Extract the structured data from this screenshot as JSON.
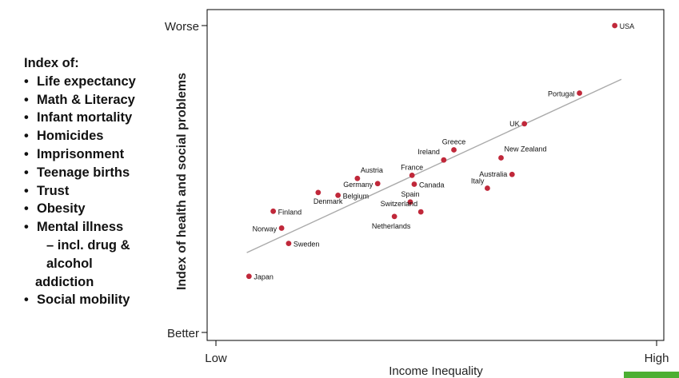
{
  "index_panel": {
    "title": "Index of:",
    "items": [
      {
        "text": "Life expectancy",
        "kind": "bullet"
      },
      {
        "text": "Math & Literacy",
        "kind": "bullet"
      },
      {
        "text": "Infant mortality",
        "kind": "bullet"
      },
      {
        "text": "Homicides",
        "kind": "bullet"
      },
      {
        "text": "Imprisonment",
        "kind": "bullet"
      },
      {
        "text": "Teenage births",
        "kind": "bullet"
      },
      {
        "text": "Trust",
        "kind": "bullet"
      },
      {
        "text": "Obesity",
        "kind": "bullet"
      },
      {
        "text": "Mental illness",
        "kind": "bullet"
      },
      {
        "text": "– incl. drug &",
        "kind": "sub"
      },
      {
        "text": "alcohol",
        "kind": "sub"
      },
      {
        "text": "addiction",
        "kind": "wrap"
      },
      {
        "text": "Social mobility",
        "kind": "bullet"
      }
    ]
  },
  "chart_data": {
    "type": "scatter",
    "xlabel": "Income Inequality",
    "ylabel": "Index of health and social problems",
    "x_tick_labels": [
      "Low",
      "High"
    ],
    "y_tick_labels": [
      "Better",
      "Worse"
    ],
    "xlim": [
      0,
      1
    ],
    "ylim": [
      0,
      1
    ],
    "grid": false,
    "point_color": "#c0283a",
    "trend_color": "#aaaaaa",
    "trendline": {
      "x": [
        0.07,
        0.92
      ],
      "y": [
        0.26,
        0.825
      ]
    },
    "points": [
      {
        "label": "USA",
        "x": 0.905,
        "y": 1.0
      },
      {
        "label": "Portugal",
        "x": 0.825,
        "y": 0.78
      },
      {
        "label": "UK",
        "x": 0.7,
        "y": 0.68
      },
      {
        "label": "Greece",
        "x": 0.54,
        "y": 0.595
      },
      {
        "label": "New Zealand",
        "x": 0.647,
        "y": 0.569
      },
      {
        "label": "Ireland",
        "x": 0.517,
        "y": 0.562
      },
      {
        "label": "France",
        "x": 0.445,
        "y": 0.512
      },
      {
        "label": "Australia",
        "x": 0.672,
        "y": 0.515
      },
      {
        "label": "Austria",
        "x": 0.321,
        "y": 0.502
      },
      {
        "label": "Germany",
        "x": 0.367,
        "y": 0.485
      },
      {
        "label": "Canada",
        "x": 0.45,
        "y": 0.483
      },
      {
        "label": "Italy",
        "x": 0.616,
        "y": 0.47
      },
      {
        "label": "Denmark",
        "x": 0.232,
        "y": 0.456
      },
      {
        "label": "Belgium",
        "x": 0.277,
        "y": 0.447
      },
      {
        "label": "Spain",
        "x": 0.441,
        "y": 0.425
      },
      {
        "label": "Finland",
        "x": 0.13,
        "y": 0.395
      },
      {
        "label": "Switzerland",
        "x": 0.465,
        "y": 0.393
      },
      {
        "label": "Netherlands",
        "x": 0.405,
        "y": 0.378
      },
      {
        "label": "Norway",
        "x": 0.149,
        "y": 0.34
      },
      {
        "label": "Sweden",
        "x": 0.165,
        "y": 0.29
      },
      {
        "label": "Japan",
        "x": 0.075,
        "y": 0.183
      }
    ]
  }
}
